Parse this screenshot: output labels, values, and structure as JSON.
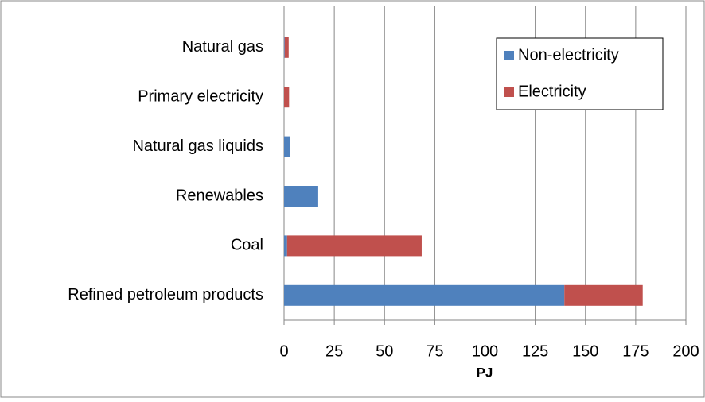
{
  "chart_data": {
    "type": "stacked_barh",
    "categories": [
      "Natural gas",
      "Primary electricity",
      "Natural gas liquids",
      "Renewables",
      "Coal",
      "Refined petroleum products"
    ],
    "series": [
      {
        "name": "Non-electricity",
        "color": "#4f81bd",
        "values": [
          0.3,
          0,
          3,
          17,
          1.5,
          139.5
        ]
      },
      {
        "name": "Electricity",
        "color": "#c0504d",
        "values": [
          2,
          2.5,
          0,
          0,
          67,
          39
        ]
      }
    ],
    "xlabel": "PJ",
    "xlim": [
      0,
      200
    ],
    "xticks": [
      0,
      25,
      50,
      75,
      100,
      125,
      150,
      175,
      200
    ],
    "grid": true,
    "legend": "upper right"
  }
}
